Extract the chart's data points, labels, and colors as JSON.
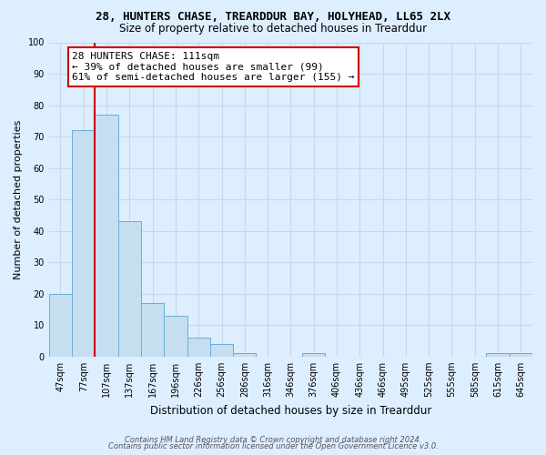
{
  "title": "28, HUNTERS CHASE, TREARDDUR BAY, HOLYHEAD, LL65 2LX",
  "subtitle": "Size of property relative to detached houses in Trearddur",
  "xlabel": "Distribution of detached houses by size in Trearddur",
  "ylabel": "Number of detached properties",
  "bar_labels": [
    "47sqm",
    "77sqm",
    "107sqm",
    "137sqm",
    "167sqm",
    "196sqm",
    "226sqm",
    "256sqm",
    "286sqm",
    "316sqm",
    "346sqm",
    "376sqm",
    "406sqm",
    "436sqm",
    "466sqm",
    "495sqm",
    "525sqm",
    "555sqm",
    "585sqm",
    "615sqm",
    "645sqm"
  ],
  "bar_values": [
    20,
    72,
    77,
    43,
    17,
    13,
    6,
    4,
    1,
    0,
    0,
    1,
    0,
    0,
    0,
    0,
    0,
    0,
    0,
    1,
    1
  ],
  "bar_color": "#c6dff0",
  "bar_edge_color": "#6aaed6",
  "vline_color": "#cc0000",
  "ylim": [
    0,
    100
  ],
  "yticks": [
    0,
    10,
    20,
    30,
    40,
    50,
    60,
    70,
    80,
    90,
    100
  ],
  "annotation_title": "28 HUNTERS CHASE: 111sqm",
  "annotation_line1": "← 39% of detached houses are smaller (99)",
  "annotation_line2": "61% of semi-detached houses are larger (155) →",
  "annotation_box_facecolor": "#ffffff",
  "annotation_box_edgecolor": "#cc0000",
  "footer1": "Contains HM Land Registry data © Crown copyright and database right 2024.",
  "footer2": "Contains public sector information licensed under the Open Government Licence v3.0.",
  "grid_color": "#c8d8e8",
  "background_color": "#ddeeff",
  "title_fontsize": 9,
  "subtitle_fontsize": 8.5,
  "ylabel_fontsize": 8,
  "xlabel_fontsize": 8.5,
  "tick_fontsize": 7,
  "footer_fontsize": 6,
  "ann_fontsize": 8
}
